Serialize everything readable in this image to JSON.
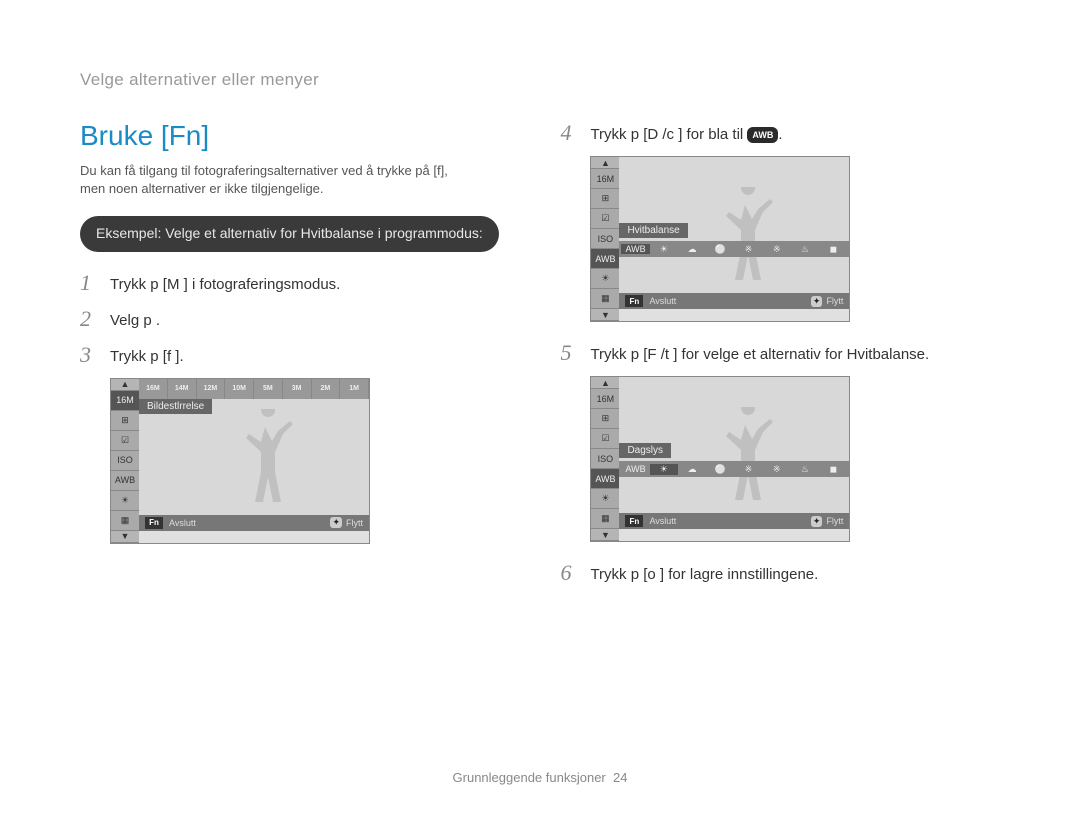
{
  "breadcrumb": "Velge alternativer eller menyer",
  "title": "Bruke [Fn]",
  "intro_line1": "Du kan få tilgang til fotograferingsalternativer ved å trykke på [f],",
  "intro_line2": "men noen alternativer er ikke tilgjengelige.",
  "example_pill": "Eksempel: Velge et alternativ for Hvitbalanse i programmodus:",
  "steps_left": [
    {
      "num": "1",
      "text": "Trykk p  [M       ] i fotograferingsmodus."
    },
    {
      "num": "2",
      "text": "Velg p    ."
    },
    {
      "num": "3",
      "text": "Trykk p  [f    ]."
    }
  ],
  "steps_right": [
    {
      "num": "4",
      "text": "Trykk p  [D      /c   ] for   bla til ",
      "has_awb": true,
      "trailing": "."
    },
    {
      "num": "5",
      "text": "Trykk p  [F /t   ] for   velge et alternativ for Hvitbalanse."
    },
    {
      "num": "6",
      "text": "Trykk p  [o   ] for   lagre innstillingene."
    }
  ],
  "awb_label": "AWB",
  "display1": {
    "top_icons": [
      "16M",
      "14M",
      "12M",
      "10M",
      "5M",
      "3M",
      "2M",
      "1M"
    ],
    "band_label": "Bildestlrrelse",
    "footer_left": "Avslutt",
    "footer_right": "Flytt",
    "footer_fn": "Fn",
    "side_icons": [
      "▲",
      "16M",
      "⊞",
      "☑",
      "ISO",
      "AWB",
      "☀",
      "▦",
      "▼"
    ],
    "highlight_index": 1
  },
  "display2": {
    "band_label": "Hvitbalanse",
    "wb_icons": [
      "AWB",
      "☀",
      "☁",
      "⚪",
      "※",
      "※",
      "♨",
      "◼"
    ],
    "footer_left": "Avslutt",
    "footer_right": "Flytt",
    "footer_fn": "Fn",
    "side_icons": [
      "▲",
      "16M",
      "⊞",
      "☑",
      "ISO",
      "AWB",
      "☀",
      "▦",
      "▼"
    ],
    "highlight_index": 5,
    "wb_sel": 0
  },
  "display3": {
    "band_label": "Dagslys",
    "wb_icons": [
      "AWB",
      "☀",
      "☁",
      "⚪",
      "※",
      "※",
      "♨",
      "◼"
    ],
    "footer_left": "Avslutt",
    "footer_right": "Flytt",
    "footer_fn": "Fn",
    "side_icons": [
      "▲",
      "16M",
      "⊞",
      "☑",
      "ISO",
      "AWB",
      "☀",
      "▦",
      "▼"
    ],
    "highlight_index": 5,
    "wb_sel": 1
  },
  "footer": {
    "label": "Grunnleggende funksjoner",
    "page": "24"
  },
  "colors": {
    "title": "#1a8bc4",
    "breadcrumb": "#999999",
    "pill_bg": "#3a3a3a",
    "step_num": "#888888"
  }
}
